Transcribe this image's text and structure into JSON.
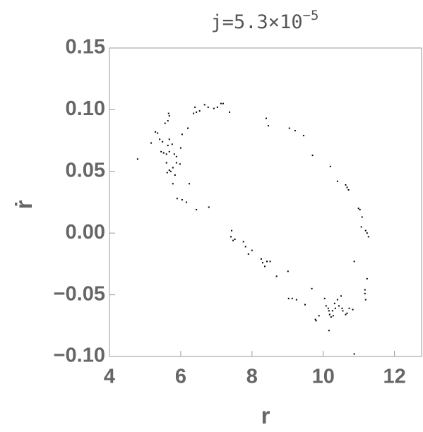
{
  "chart_data": {
    "type": "scatter",
    "title": "j=5.3×10",
    "title_exponent": "−5",
    "x_label": "r",
    "y_label": "ṙ",
    "color": "#000000",
    "xlim": [
      4,
      12.8
    ],
    "ylim": [
      -0.1,
      0.15
    ],
    "xticks": [
      4,
      6,
      8,
      10,
      12
    ],
    "yticks": [
      {
        "value": 0.15,
        "label": "0.15"
      },
      {
        "value": 0.1,
        "label": "0.10"
      },
      {
        "value": 0.05,
        "label": "0.05"
      },
      {
        "value": 0,
        "label": "0.00"
      },
      {
        "value": -0.05,
        "label": "−0.05"
      },
      {
        "value": -0.1,
        "label": "−0.10"
      }
    ],
    "series": [
      {
        "x": [
          4.79,
          5.17,
          5.29,
          5.35,
          5.45,
          5.52,
          5.6,
          5.68,
          5.64,
          5.66,
          5.68,
          5.56,
          5.49,
          5.41,
          5.68,
          5.64,
          5.76,
          5.82,
          5.6,
          5.68,
          5.62,
          5.72,
          5.78,
          5.88,
          5.98,
          5.84,
          5.78,
          5.88,
          6.0,
          6.04,
          6.2,
          5.9,
          6.04,
          6.16,
          6.44,
          6.79,
          6.24,
          6.36,
          6.4,
          6.44,
          6.53,
          6.67,
          6.77,
          6.93,
          7.03,
          7.13,
          7.19,
          7.37,
          8.4,
          8.46,
          9.05,
          9.21,
          9.45,
          9.7,
          10.2,
          10.4,
          10.63,
          10.67,
          10.71,
          10.99,
          11.03,
          11.09,
          11.07,
          11.19,
          11.23,
          11.27,
          7.43,
          7.41,
          7.47,
          7.52,
          7.76,
          7.82,
          7.9,
          8.0,
          8.26,
          8.3,
          8.36,
          8.42,
          8.51,
          8.69,
          9.01,
          9.03,
          9.13,
          9.25,
          9.49,
          9.68,
          9.78,
          9.8,
          9.88,
          10.04,
          10.08,
          10.14,
          10.16,
          10.18,
          10.22,
          10.28,
          10.26,
          10.34,
          10.32,
          10.4,
          10.44,
          10.5,
          10.53,
          10.55,
          10.63,
          10.67,
          10.73,
          10.83,
          10.16,
          10.87,
          11.17,
          11.17,
          11.19,
          11.23,
          10.87
        ],
        "values": [
          0.06,
          0.073,
          0.082,
          0.081,
          0.066,
          0.065,
          0.064,
          0.066,
          0.091,
          0.097,
          0.095,
          0.089,
          0.074,
          0.076,
          0.076,
          0.071,
          0.072,
          0.064,
          0.057,
          0.051,
          0.049,
          0.05,
          0.053,
          0.057,
          0.056,
          0.047,
          0.04,
          0.062,
          0.069,
          0.08,
          0.085,
          0.028,
          0.027,
          0.025,
          0.019,
          0.021,
          0.04,
          0.097,
          0.102,
          0.098,
          0.099,
          0.104,
          0.102,
          0.101,
          0.102,
          0.105,
          0.105,
          0.098,
          0.093,
          0.087,
          0.085,
          0.083,
          0.079,
          0.063,
          0.054,
          0.042,
          0.039,
          0.037,
          0.035,
          0.02,
          0.019,
          0.013,
          0.005,
          0.002,
          0.0,
          -0.003,
          0.002,
          -0.003,
          -0.006,
          -0.005,
          -0.007,
          -0.011,
          -0.017,
          -0.014,
          -0.021,
          -0.024,
          -0.027,
          -0.023,
          -0.023,
          -0.035,
          -0.031,
          -0.053,
          -0.053,
          -0.054,
          -0.058,
          -0.045,
          -0.07,
          -0.071,
          -0.067,
          -0.053,
          -0.059,
          -0.061,
          -0.063,
          -0.066,
          -0.068,
          -0.067,
          -0.063,
          -0.061,
          -0.057,
          -0.054,
          -0.059,
          -0.051,
          -0.061,
          -0.063,
          -0.066,
          -0.065,
          -0.061,
          -0.062,
          -0.079,
          -0.023,
          -0.046,
          -0.049,
          -0.054,
          -0.037,
          -0.098
        ]
      }
    ]
  }
}
